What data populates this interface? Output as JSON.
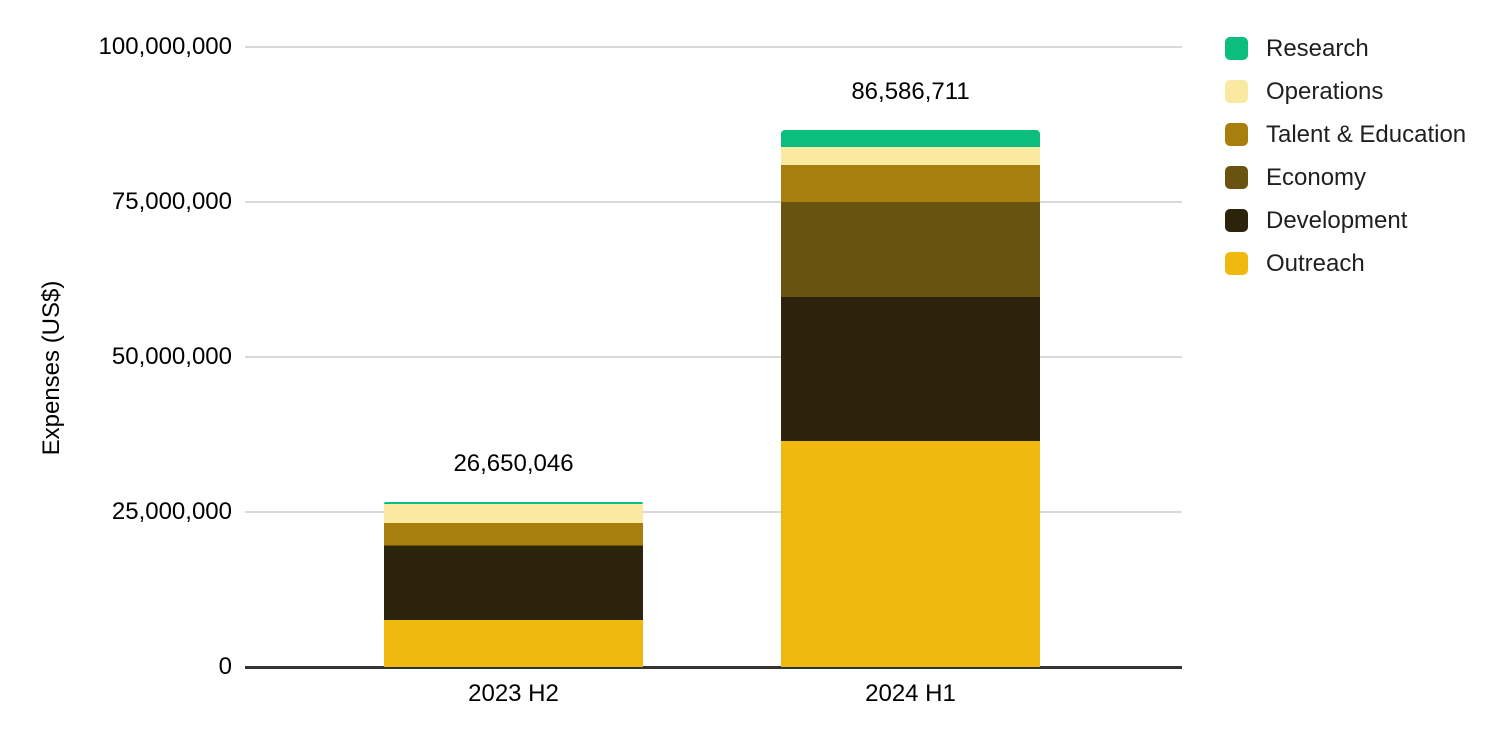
{
  "chart_data": {
    "type": "bar",
    "variant": "stacked-column",
    "title": "",
    "xlabel": "",
    "ylabel": "Expenses (US$)",
    "categories": [
      "2023 H2",
      "2024 H1"
    ],
    "totals": [
      26650046,
      86586711
    ],
    "total_labels": [
      "26,650,046",
      "86,586,711"
    ],
    "ylim": [
      0,
      100000000
    ],
    "y_ticks": [
      0,
      25000000,
      50000000,
      75000000,
      100000000
    ],
    "y_tick_labels": [
      "0",
      "25,000,000",
      "50,000,000",
      "75,000,000",
      "100,000,000"
    ],
    "grid": true,
    "legend_position": "right",
    "legend_order_top_to_bottom": [
      "Research",
      "Operations",
      "Talent & Education",
      "Economy",
      "Development",
      "Outreach"
    ],
    "values_note": "Per-segment values estimated from bar pixel heights; stack totals are exact as labeled on the chart.",
    "series": [
      {
        "name": "Outreach",
        "color": "#f0b90f",
        "values": [
          7600000,
          36500000
        ]
      },
      {
        "name": "Development",
        "color": "#2b230c",
        "values": [
          11900000,
          23100000
        ]
      },
      {
        "name": "Economy",
        "color": "#6a5311",
        "values": [
          150000,
          15400000
        ]
      },
      {
        "name": "Talent & Education",
        "color": "#a87f0c",
        "values": [
          3600000,
          5900000
        ]
      },
      {
        "name": "Operations",
        "color": "#fae9a0",
        "values": [
          3000000,
          3000000
        ]
      },
      {
        "name": "Research",
        "color": "#0cbe7d",
        "values": [
          400046,
          2686711
        ]
      }
    ],
    "colors": {
      "gridline": "#d9d9d9",
      "axis_line": "#333333",
      "text": "#000000",
      "legend_text": "#1f1f1f",
      "background": "#ffffff"
    }
  }
}
